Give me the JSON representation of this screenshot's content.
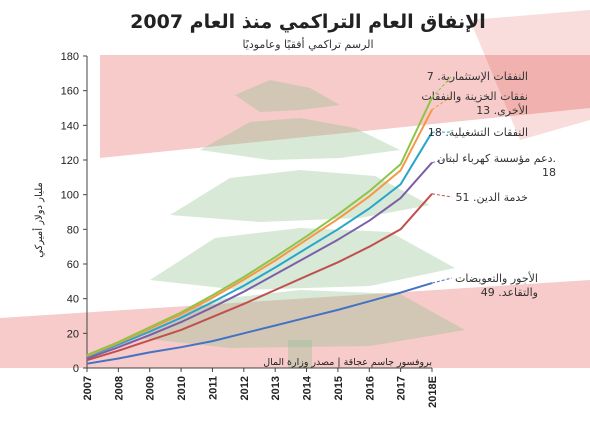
{
  "title": "الإنفاق العام التراكمي منذ العام 2007",
  "subtitle": "الرسم تراكمي أفقيًا وعاموديًا",
  "credit": "بروفسور جاسم عجاقة | مصدر وزارة المال",
  "colors": {
    "flag_red": "#e0443c",
    "cedar_green": "#8fbf8f"
  },
  "chart_data": {
    "type": "line",
    "ylabel": "مليار دولار أميركي",
    "ylim": [
      0,
      180
    ],
    "yticks": [
      0,
      20,
      40,
      60,
      80,
      100,
      120,
      140,
      160,
      180
    ],
    "x": [
      "2007",
      "2008",
      "2009",
      "2010",
      "2011",
      "2012",
      "2013",
      "2014",
      "2015",
      "2016",
      "2017",
      "2018E"
    ],
    "grid": false,
    "series": [
      {
        "key": "wages",
        "label_lines": [
          "الأجور والتعويضات",
          "والتقاعد. 49"
        ],
        "color": "#4472c4",
        "values": [
          2.5,
          5.5,
          9,
          12,
          15.5,
          20,
          24.5,
          29,
          33.5,
          38.5,
          43.5,
          49
        ]
      },
      {
        "key": "debt",
        "label_lines": [
          "خدمة الدين. 51"
        ],
        "color": "#c0504d",
        "values": [
          4.5,
          10,
          16,
          22,
          29.5,
          37,
          45,
          53,
          61,
          70,
          80,
          100.5
        ]
      },
      {
        "key": "edl",
        "label_lines": [
          "دعم مؤسسة كهرباء لبنان.",
          "18"
        ],
        "color": "#7b5fa8",
        "values": [
          5.5,
          12,
          19,
          26.5,
          35,
          44,
          54,
          64,
          74,
          85,
          98,
          118.5
        ]
      },
      {
        "key": "operating",
        "label_lines": [
          "النفقات التشغيلية. 18"
        ],
        "color": "#2aa6c8",
        "values": [
          6.5,
          13.5,
          21,
          29,
          38,
          47.5,
          58,
          69,
          80,
          92,
          106,
          136
        ]
      },
      {
        "key": "treasury",
        "label_lines": [
          "نفقات الخزينة والنفقات",
          "الأخرى. 13"
        ],
        "color": "#f79646",
        "values": [
          7,
          14.5,
          22.5,
          31,
          40.5,
          51,
          62,
          74,
          86,
          99,
          114,
          149
        ]
      },
      {
        "key": "investment",
        "label_lines": [
          "النفقات الإستثمارية. 7"
        ],
        "color": "#8fc447",
        "values": [
          7.5,
          15,
          23.5,
          32,
          42,
          52.5,
          64,
          76,
          88.5,
          102,
          117.5,
          156
        ]
      }
    ]
  }
}
